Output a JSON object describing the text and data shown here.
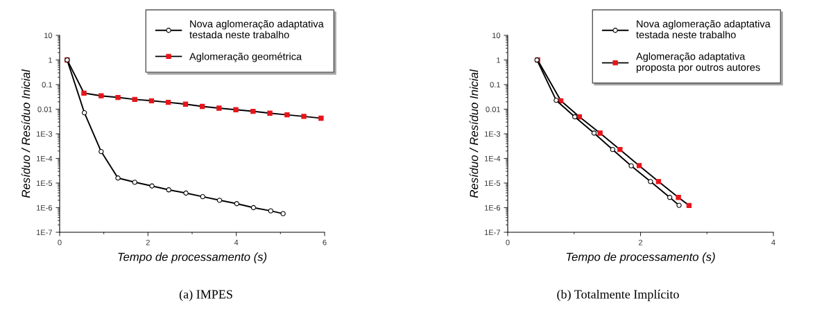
{
  "chart_data": [
    {
      "type": "line",
      "annotations": [
        "(a) IMPES"
      ],
      "xlabel": "Tempo de processamento (s)",
      "ylabel": "Resíduo / Resíduo Inicial",
      "log": "y",
      "xlim": [
        0,
        6
      ],
      "xticks": [
        0,
        2,
        4,
        6
      ],
      "ylim": [
        1e-07,
        10
      ],
      "yticks": [
        {
          "value": 1e-07,
          "label": "1E-7"
        },
        {
          "value": 1e-06,
          "label": "1E-6"
        },
        {
          "value": 1e-05,
          "label": "1E-5"
        },
        {
          "value": 0.0001,
          "label": "1E-4"
        },
        {
          "value": 0.001,
          "label": "1E-3"
        },
        0.01,
        0.1,
        1,
        10
      ],
      "legend": "top right",
      "grid": false,
      "series": [
        {
          "name": "Nova aglomeração adaptativa\ntestada neste trabalho",
          "color": "#000000",
          "marker": "circle",
          "x": [
            0.17,
            0.56,
            0.94,
            1.32,
            1.7,
            2.09,
            2.47,
            2.86,
            3.24,
            3.62,
            4.01,
            4.39,
            4.78,
            5.06
          ],
          "values": [
            1,
            0.0072,
            0.00019,
            1.6e-05,
            1.08e-05,
            7.6e-06,
            5.3e-06,
            3.9e-06,
            2.8e-06,
            2e-06,
            1.45e-06,
            1e-06,
            7.4e-07,
            5.7e-07
          ]
        },
        {
          "name": "Aglomeração geométrica",
          "color": "#e8141b",
          "marker": "square",
          "x": [
            0.17,
            0.55,
            0.94,
            1.32,
            1.7,
            2.08,
            2.46,
            2.85,
            3.23,
            3.61,
            3.99,
            4.38,
            4.76,
            5.15,
            5.53,
            5.92
          ],
          "values": [
            1,
            0.045,
            0.035,
            0.03,
            0.025,
            0.022,
            0.019,
            0.016,
            0.013,
            0.011,
            0.0095,
            0.0082,
            0.0069,
            0.0059,
            0.0051,
            0.0043
          ]
        }
      ]
    },
    {
      "type": "line",
      "annotations": [
        "(b) Totalmente Implícito"
      ],
      "xlabel": "Tempo de processamento (s)",
      "ylabel": "Resíduo / Resíduo Inicial",
      "log": "y",
      "xlim": [
        0,
        4
      ],
      "xticks": [
        0,
        2,
        4
      ],
      "ylim": [
        1e-07,
        10
      ],
      "yticks": [
        {
          "value": 1e-07,
          "label": "1E-7"
        },
        {
          "value": 1e-06,
          "label": "1E-6"
        },
        {
          "value": 1e-05,
          "label": "1E-5"
        },
        {
          "value": 0.0001,
          "label": "1E-4"
        },
        {
          "value": 0.001,
          "label": "1E-3"
        },
        0.01,
        0.1,
        1,
        10
      ],
      "legend": "top right",
      "grid": false,
      "series": [
        {
          "name": "Nova aglomeração adaptativa\ntestada neste trabalho",
          "color": "#000000",
          "marker": "circle",
          "x": [
            0.44,
            0.73,
            1.01,
            1.3,
            1.58,
            1.86,
            2.15,
            2.44,
            2.58
          ],
          "values": [
            1,
            0.023,
            0.0049,
            0.00107,
            0.00023,
            5e-05,
            1.15e-05,
            2.6e-06,
            1.25e-06
          ]
        },
        {
          "name": "Aglomeração adaptativa\nproposta por outros autores",
          "color": "#e8141b",
          "marker": "square",
          "x": [
            0.45,
            0.8,
            1.08,
            1.39,
            1.69,
            1.98,
            2.27,
            2.57,
            2.73
          ],
          "values": [
            1,
            0.022,
            0.0049,
            0.00107,
            0.00023,
            5.1e-05,
            1.15e-05,
            2.6e-06,
            1.23e-06
          ]
        }
      ]
    }
  ]
}
